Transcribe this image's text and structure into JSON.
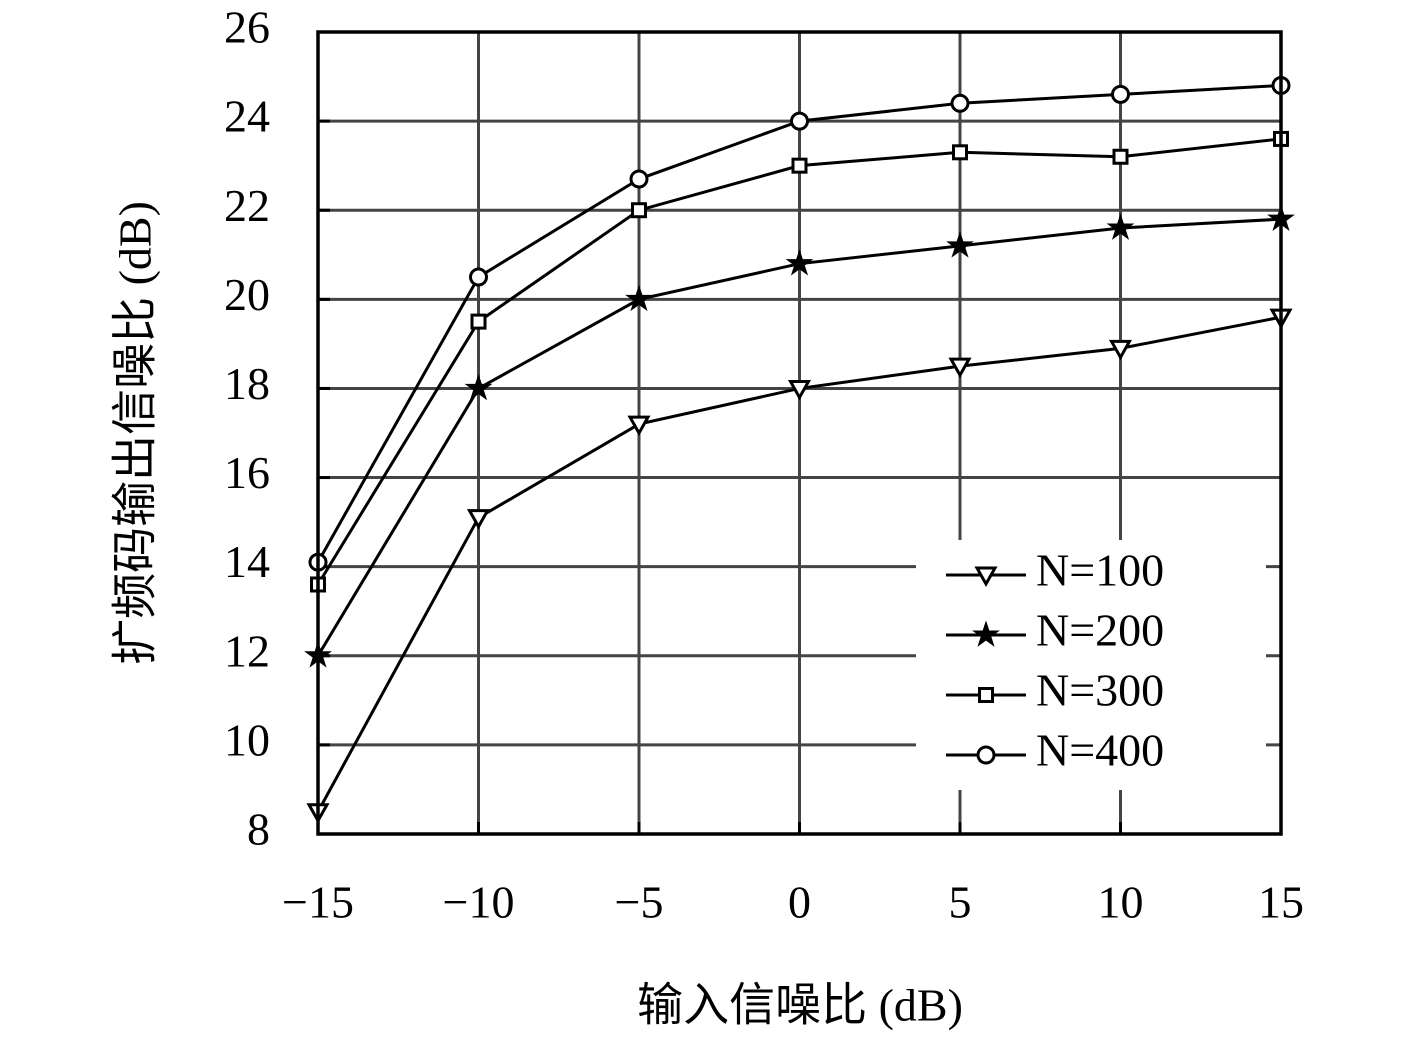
{
  "chart_data": {
    "type": "line",
    "x_label": "输入信噪比 (dB)",
    "y_label": "扩频码输出信噪比 (dB)",
    "x": [
      -15,
      -10,
      -5,
      0,
      5,
      10,
      15
    ],
    "series": [
      {
        "name": "N=100",
        "color": "#000000",
        "marker": "triangle-down",
        "values": [
          8.5,
          15.1,
          17.2,
          18.0,
          18.5,
          18.9,
          19.6
        ]
      },
      {
        "name": "N=200",
        "color": "#000000",
        "marker": "star",
        "values": [
          12.0,
          18.0,
          20.0,
          20.8,
          21.2,
          21.6,
          21.8
        ]
      },
      {
        "name": "N=300",
        "color": "#000000",
        "marker": "square",
        "values": [
          13.6,
          19.5,
          22.0,
          23.0,
          23.3,
          23.2,
          23.6
        ]
      },
      {
        "name": "N=400",
        "color": "#000000",
        "marker": "circle",
        "values": [
          14.1,
          20.5,
          22.7,
          24.0,
          24.4,
          24.6,
          24.8
        ]
      }
    ],
    "xlim": [
      -15,
      15
    ],
    "xticks": [
      {
        "value": -15,
        "label": "−15"
      },
      {
        "value": -10,
        "label": "−10"
      },
      {
        "value": -5,
        "label": "−5"
      },
      0,
      5,
      10,
      15
    ],
    "ylim": [
      8,
      26
    ],
    "yticks": [
      8,
      10,
      12,
      14,
      16,
      18,
      20,
      22,
      24,
      26
    ],
    "grid": true,
    "legend": "lower right"
  }
}
